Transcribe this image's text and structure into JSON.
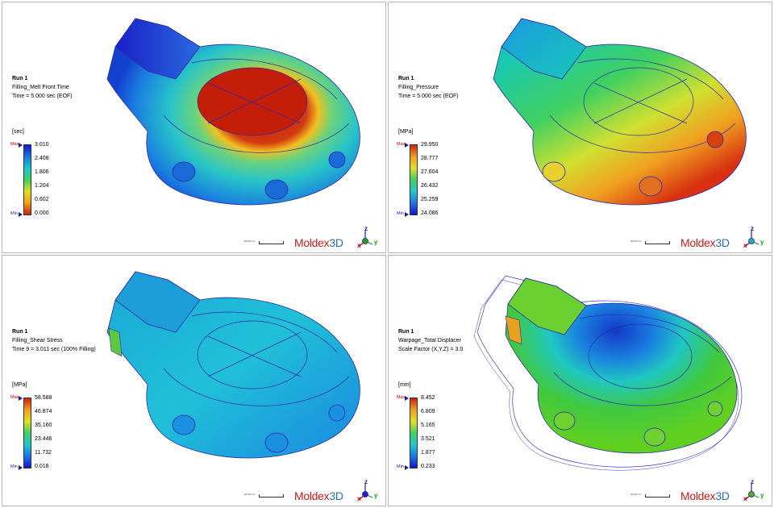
{
  "brand": {
    "prefix": "Moldex",
    "suffix": "3D"
  },
  "panels": [
    {
      "run": "Run 1",
      "result": "Filling_Melt Front Time",
      "time": "Time = 5.000 sec (EOF)",
      "unit": "[sec]",
      "max_label": "Max",
      "min_label": "Min",
      "ticks": [
        "3.010",
        "2.408",
        "1.806",
        "1.204",
        "0.602",
        "0.000"
      ],
      "colormap": "blue-top",
      "scale_text": "20.00 mm"
    },
    {
      "run": "Run 1",
      "result": "Filling_Pressure",
      "time": "Time = 5.000 sec (EOF)",
      "unit": "[MPa]",
      "max_label": "Max",
      "min_label": "Min",
      "ticks": [
        "29.950",
        "28.777",
        "27.604",
        "26.432",
        "25.259",
        "24.086"
      ],
      "colormap": "red-top",
      "scale_text": "20.00 mm"
    },
    {
      "run": "Run 1",
      "result": "Filling_Shear Stress",
      "time": "Time 9 = 3.011 sec (100% Filling)",
      "unit": "[MPa]",
      "max_label": "Max",
      "min_label": "Min",
      "ticks": [
        "58.588",
        "46.874",
        "35.160",
        "23.446",
        "11.732",
        "0.018"
      ],
      "colormap": "red-top",
      "scale_text": "20.00 mm"
    },
    {
      "run": "Run 1",
      "result": "Warpage_Total Displacer",
      "time": "Scale Factor (X,Y,Z) = 3.0",
      "unit": "[mm]",
      "max_label": "Max",
      "min_label": "Min",
      "ticks": [
        "8.452",
        "6.809",
        "5.165",
        "3.521",
        "1.877",
        "0.233"
      ],
      "colormap": "red-top",
      "scale_text": "10.00 mm"
    }
  ],
  "axes": {
    "z": "z",
    "x": "x",
    "y": "y"
  },
  "colors": {
    "outline": "#2a2aa8",
    "max": "#c00000",
    "min": "#1010c0"
  }
}
